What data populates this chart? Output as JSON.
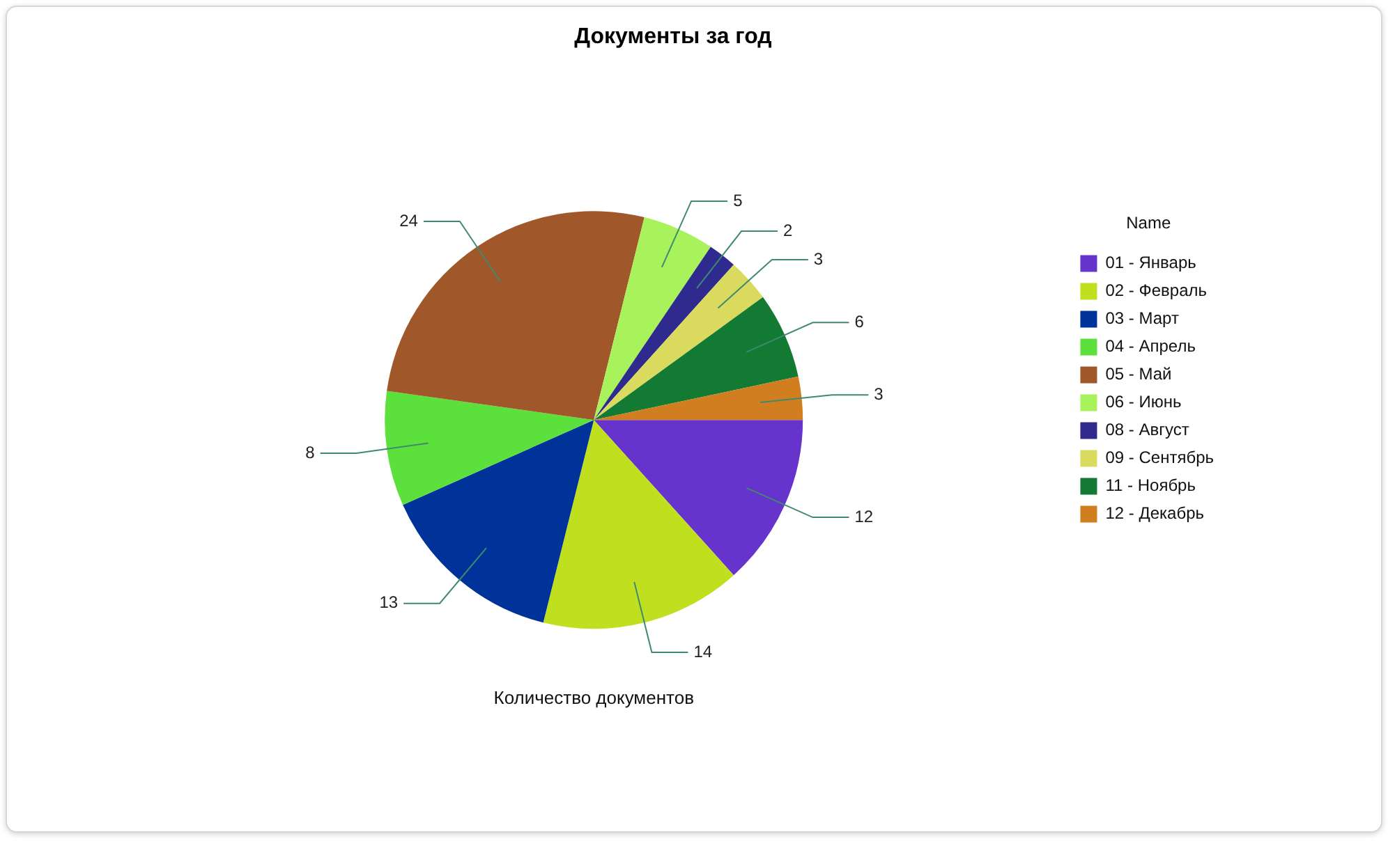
{
  "chart_data": {
    "type": "pie",
    "title": "Документы за год",
    "xlabel": "Количество документов",
    "legend_title": "Name",
    "legend": "right",
    "data_labels": true,
    "categories": [
      "01 - Январь",
      "02 - Февраль",
      "03 - Март",
      "04 - Апрель",
      "05 - Май",
      "06 - Июнь",
      "08 - Август",
      "09 - Сентябрь",
      "11 - Ноябрь",
      "12 - Декабрь"
    ],
    "values": [
      12,
      14,
      13,
      8,
      24,
      5,
      2,
      3,
      6,
      3
    ],
    "colors": [
      "#6633cc",
      "#bfdf1f",
      "#003399",
      "#5ce03c",
      "#a0572a",
      "#a8f35c",
      "#2e2a8e",
      "#dada5e",
      "#137a33",
      "#d07e20"
    ]
  }
}
